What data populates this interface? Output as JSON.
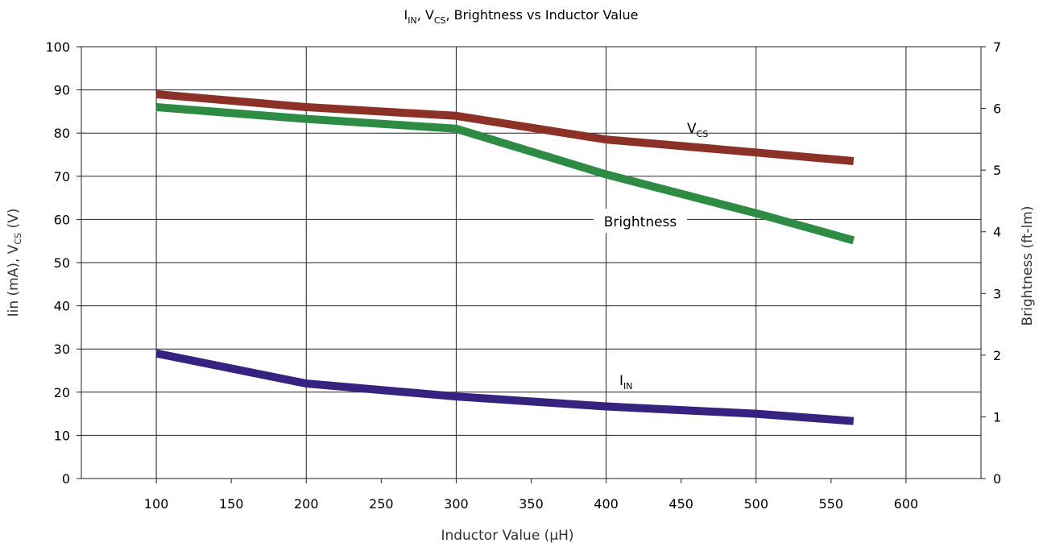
{
  "chart_data": {
    "type": "line",
    "title": {
      "parts": [
        {
          "t": "I",
          "sub": false
        },
        {
          "t": "IN",
          "sub": true
        },
        {
          "t": ", V",
          "sub": false
        },
        {
          "t": "CS",
          "sub": true
        },
        {
          "t": ", Brightness vs Inductor Value",
          "sub": false
        }
      ]
    },
    "xlabel": "Inductor Value (μH)",
    "ylabel_left": "Iin (mA), V",
    "ylabel_left_sub": "CS",
    "ylabel_left_tail": " (V)",
    "ylabel_right": "Brightness  (ft-lm)",
    "xlim": [
      50,
      650
    ],
    "ylim_left": [
      0,
      100
    ],
    "ylim_right": [
      0,
      7
    ],
    "x_ticks": [
      "100",
      "150",
      "200",
      "250",
      "300",
      "350",
      "400",
      "450",
      "500",
      "550",
      "600"
    ],
    "y_ticks_left": [
      "0",
      "10",
      "20",
      "30",
      "40",
      "50",
      "60",
      "70",
      "80",
      "90",
      "100"
    ],
    "y_ticks_right": [
      "0",
      "1",
      "2",
      "3",
      "4",
      "5",
      "6",
      "7"
    ],
    "grid": true,
    "series": [
      {
        "name": "VCS",
        "label_parts": [
          {
            "t": "V",
            "sub": false
          },
          {
            "t": "CS",
            "sub": true
          }
        ],
        "axis": "left",
        "color": "#8b3128",
        "x": [
          100,
          200,
          300,
          400,
          500,
          565
        ],
        "y": [
          89,
          86,
          84,
          78.5,
          75.5,
          73.5
        ]
      },
      {
        "name": "Brightness",
        "label_parts": [
          {
            "t": "Brightness",
            "sub": false
          }
        ],
        "axis": "right",
        "color": "#2e8b43",
        "x": [
          100,
          200,
          300,
          400,
          500,
          565
        ],
        "y": [
          6.02,
          5.83,
          5.67,
          4.93,
          4.3,
          3.86
        ]
      },
      {
        "name": "IIN",
        "label_parts": [
          {
            "t": "I",
            "sub": false
          },
          {
            "t": "IN",
            "sub": true
          }
        ],
        "axis": "left",
        "color": "#35237f",
        "x": [
          100,
          200,
          300,
          400,
          500,
          565
        ],
        "y": [
          29,
          22,
          19,
          16.7,
          15,
          13.3
        ]
      }
    ]
  }
}
